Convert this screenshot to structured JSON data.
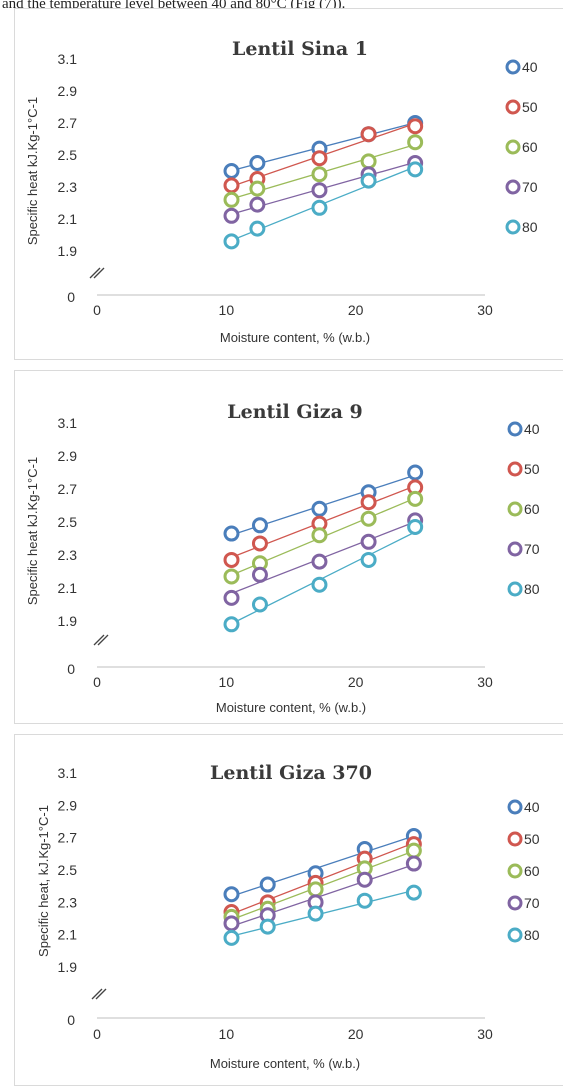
{
  "header": {
    "text": "and the temperature level between 40 and 80°C (Fig (7))."
  },
  "chart_data": [
    {
      "type": "scatter",
      "title": "Lentil Sina 1",
      "xlabel": "Moisture content, % (w.b.)",
      "ylabel": "Specific heat kJ.Kg-1°C-1",
      "xlim": [
        0,
        30
      ],
      "ylim": [
        1.9,
        3.1
      ],
      "xticks": [
        0,
        10,
        20,
        30
      ],
      "yticks": [
        3.1,
        2.9,
        2.7,
        2.5,
        2.3,
        2.1,
        1.9
      ],
      "y_zero_label": "0",
      "axis_break": true,
      "legend_position": "right",
      "x": [
        10.4,
        12.4,
        17.2,
        21.0,
        24.6
      ],
      "series": [
        {
          "name": "40",
          "color": "#4a7ebb",
          "values": [
            2.4,
            2.45,
            2.54,
            2.63,
            2.7
          ]
        },
        {
          "name": "50",
          "color": "#d0574f",
          "values": [
            2.31,
            2.35,
            2.48,
            2.63,
            2.68
          ]
        },
        {
          "name": "60",
          "color": "#9bbb59",
          "values": [
            2.22,
            2.29,
            2.38,
            2.46,
            2.58
          ]
        },
        {
          "name": "70",
          "color": "#8064a2",
          "values": [
            2.12,
            2.19,
            2.28,
            2.38,
            2.45
          ]
        },
        {
          "name": "80",
          "color": "#4bacc6",
          "values": [
            1.96,
            2.04,
            2.17,
            2.34,
            2.41
          ]
        }
      ]
    },
    {
      "type": "scatter",
      "title": "Lentil Giza 9",
      "xlabel": "Moisture content, % (w.b.)",
      "ylabel": "Specific heat kJ.Kg-1°C-1",
      "xlim": [
        0,
        30
      ],
      "ylim": [
        1.9,
        3.1
      ],
      "xticks": [
        0,
        10,
        20,
        30
      ],
      "yticks": [
        3.1,
        2.9,
        2.7,
        2.5,
        2.3,
        2.1,
        1.9
      ],
      "y_zero_label": "0",
      "axis_break": true,
      "legend_position": "right",
      "x": [
        10.4,
        12.6,
        17.2,
        21.0,
        24.6
      ],
      "series": [
        {
          "name": "40",
          "color": "#4a7ebb",
          "values": [
            2.43,
            2.48,
            2.58,
            2.68,
            2.8
          ]
        },
        {
          "name": "50",
          "color": "#d0574f",
          "values": [
            2.27,
            2.37,
            2.49,
            2.62,
            2.71
          ]
        },
        {
          "name": "60",
          "color": "#9bbb59",
          "values": [
            2.17,
            2.25,
            2.42,
            2.52,
            2.64
          ]
        },
        {
          "name": "70",
          "color": "#8064a2",
          "values": [
            2.04,
            2.18,
            2.26,
            2.38,
            2.51
          ]
        },
        {
          "name": "80",
          "color": "#4bacc6",
          "values": [
            1.88,
            2.0,
            2.12,
            2.27,
            2.47
          ]
        }
      ]
    },
    {
      "type": "scatter",
      "title": "Lentil Giza 370",
      "xlabel": "Moisture content, % (w.b.)",
      "ylabel": "Specific heat, kJ.Kg-1°C-1",
      "xlim": [
        0,
        30
      ],
      "ylim": [
        1.9,
        3.1
      ],
      "xticks": [
        0,
        10,
        20,
        30
      ],
      "yticks": [
        3.1,
        2.9,
        2.7,
        2.5,
        2.3,
        2.1,
        1.9
      ],
      "y_zero_label": "0",
      "axis_break": true,
      "legend_position": "right",
      "x": [
        10.4,
        13.2,
        16.9,
        20.7,
        24.5
      ],
      "series": [
        {
          "name": "40",
          "color": "#4a7ebb",
          "values": [
            2.35,
            2.41,
            2.48,
            2.63,
            2.71
          ]
        },
        {
          "name": "50",
          "color": "#d0574f",
          "values": [
            2.24,
            2.3,
            2.42,
            2.57,
            2.66
          ]
        },
        {
          "name": "60",
          "color": "#9bbb59",
          "values": [
            2.21,
            2.26,
            2.38,
            2.51,
            2.62
          ]
        },
        {
          "name": "70",
          "color": "#8064a2",
          "values": [
            2.17,
            2.22,
            2.3,
            2.44,
            2.54
          ]
        },
        {
          "name": "80",
          "color": "#4bacc6",
          "values": [
            2.08,
            2.15,
            2.23,
            2.31,
            2.36
          ]
        }
      ]
    }
  ]
}
